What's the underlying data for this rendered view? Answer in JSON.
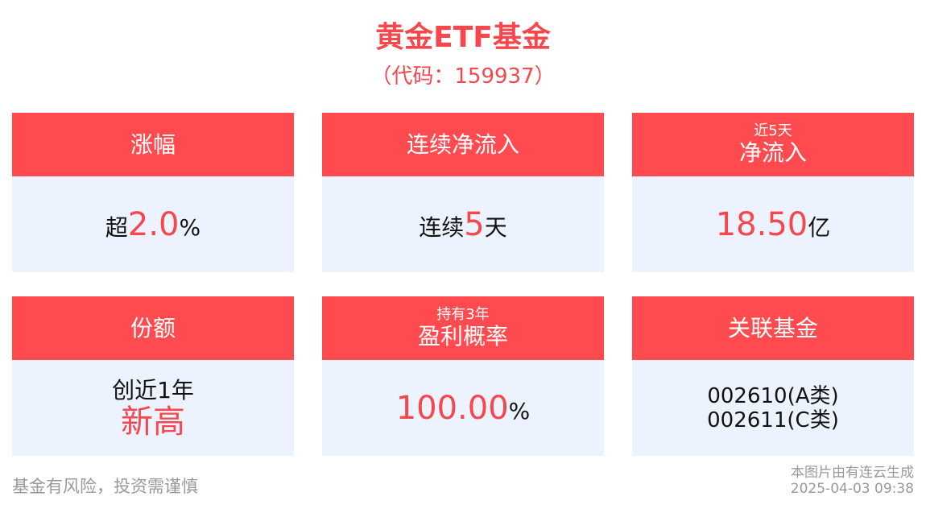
{
  "header": {
    "title": "黄金ETF基金",
    "code": "（代码：159937）"
  },
  "colors": {
    "accent": "#ff4b4f",
    "card_body": "#edf3fe",
    "highlight": "#f5474c"
  },
  "cards": [
    {
      "title": "涨幅",
      "prefix": "超",
      "value": "2.0",
      "suffix": "%"
    },
    {
      "title": "连续净流入",
      "prefix": "连续",
      "value": "5",
      "suffix": "天"
    },
    {
      "subtitle": "近5天",
      "title": "净流入",
      "value": "18.50",
      "suffix": "亿"
    },
    {
      "title": "份额",
      "line1": "创近1年",
      "line2": "新高"
    },
    {
      "subtitle": "持有3年",
      "title": "盈利概率",
      "value": "100.00",
      "suffix": "%"
    },
    {
      "title": "关联基金",
      "line1": "002610(A类)",
      "line2": "002611(C类)"
    }
  ],
  "footer": {
    "disclaimer": "基金有风险，投资需谨慎",
    "source": "本图片由有连云生成",
    "timestamp": "2025-04-03 09:38"
  }
}
